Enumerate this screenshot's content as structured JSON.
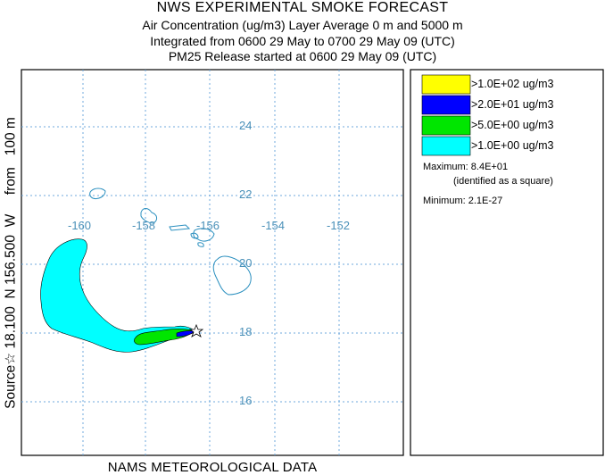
{
  "title": "NWS EXPERIMENTAL SMOKE FORECAST",
  "subtitle_lines": [
    "Air Concentration (ug/m3) Layer Average    0 m and  5000 m",
    "Integrated from 0600 29 May to 0700 29 May 09 (UTC)",
    "PM25 Release started at 0600 29 May 09 (UTC)"
  ],
  "side_label": "Source☆ 18.100  N 156.500  W     from   100 m",
  "footer": "NAMS METEOROLOGICAL DATA",
  "map": {
    "lon_labels": [
      "-160",
      "-158",
      "-156",
      "-154",
      "-152"
    ],
    "lat_labels": [
      "24",
      "22",
      "20",
      "18",
      "16"
    ],
    "grid_color": "#6fa8dc",
    "label_color": "#4a90b8",
    "coast_color": "#2a8fbf"
  },
  "legend": {
    "items": [
      {
        "label": ">1.0E+02 ug/m3",
        "color": "#ffff00"
      },
      {
        "label": ">2.0E+01 ug/m3",
        "color": "#0000ff"
      },
      {
        "label": ">5.0E+00 ug/m3",
        "color": "#00e600"
      },
      {
        "label": ">1.0E+00 ug/m3",
        "color": "#00ffff"
      }
    ],
    "maximum": "Maximum: 8.4E+01",
    "maximum_note": "(identified as a square)",
    "minimum": "Minimum: 2.1E-27"
  },
  "source_marker_icon": "star-icon"
}
